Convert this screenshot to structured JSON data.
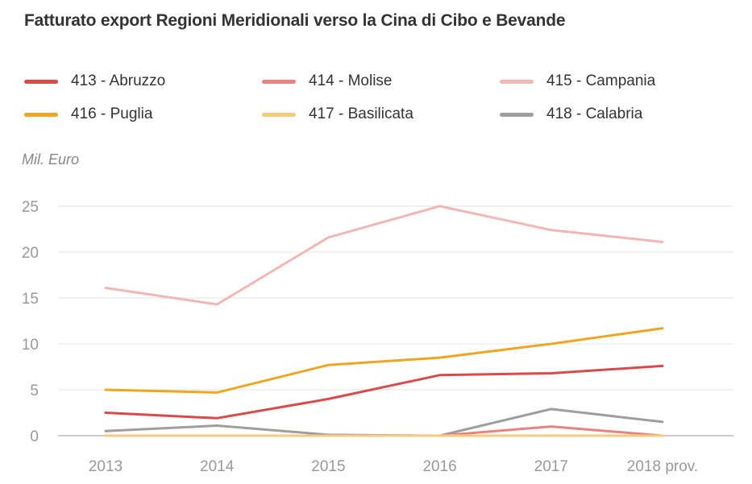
{
  "chart_data": {
    "type": "line",
    "title": "Fatturato export Regioni Meridionali verso la Cina di Cibo e Bevande",
    "ylabel": "Mil. Euro",
    "xlabel": "",
    "categories": [
      "2013",
      "2014",
      "2015",
      "2016",
      "2017",
      "2018 prov."
    ],
    "ylim": [
      0,
      25
    ],
    "yticks": [
      0,
      5,
      10,
      15,
      20,
      25
    ],
    "grid": true,
    "legend_position": "top",
    "series": [
      {
        "name": "413 - Abruzzo",
        "color": "#d94a4a",
        "values": [
          2.5,
          1.9,
          4.0,
          6.6,
          6.8,
          7.6
        ]
      },
      {
        "name": "414 - Molise",
        "color": "#e8847f",
        "values": [
          0.0,
          0.0,
          0.0,
          0.0,
          1.0,
          0.0
        ]
      },
      {
        "name": "415 - Campania",
        "color": "#f1b7b5",
        "values": [
          16.1,
          14.3,
          21.6,
          25.0,
          22.4,
          21.1
        ]
      },
      {
        "name": "416 - Puglia",
        "color": "#eea522",
        "values": [
          5.0,
          4.7,
          7.7,
          8.5,
          10.0,
          11.7
        ]
      },
      {
        "name": "417 - Basilicata",
        "color": "#f6cb7a",
        "values": [
          0.0,
          0.0,
          0.0,
          0.0,
          0.0,
          0.0
        ]
      },
      {
        "name": "418 - Calabria",
        "color": "#9e9e9e",
        "values": [
          0.5,
          1.1,
          0.1,
          0.0,
          2.9,
          1.5
        ]
      }
    ]
  }
}
